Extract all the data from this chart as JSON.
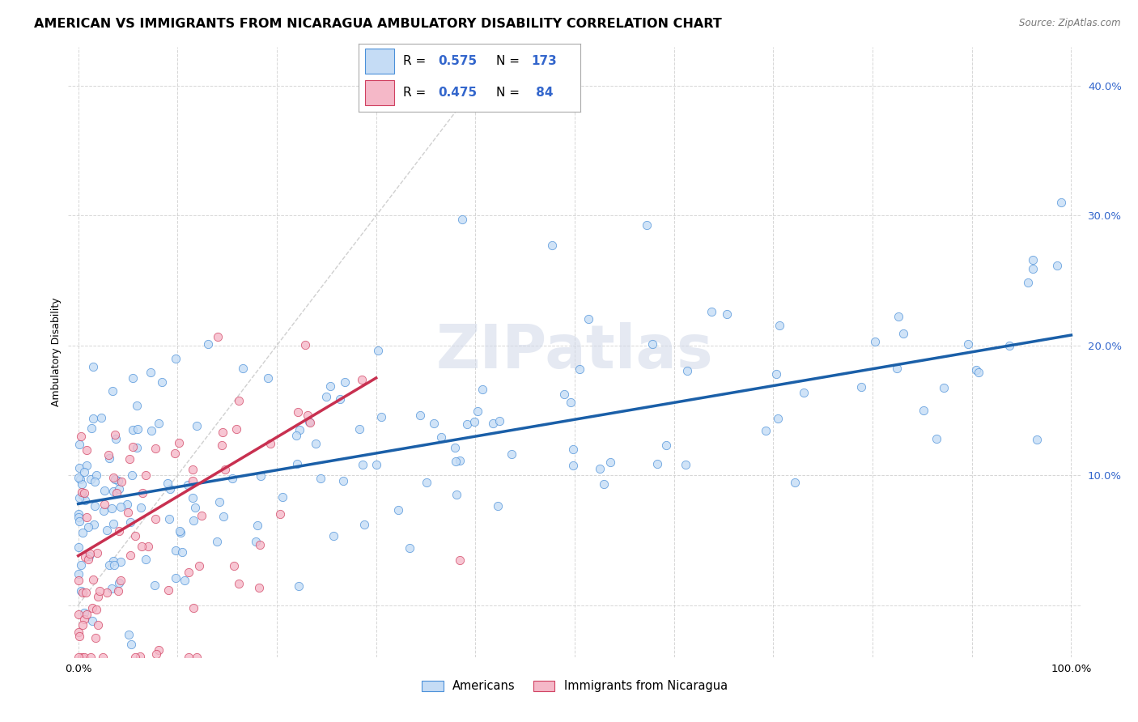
{
  "title": "AMERICAN VS IMMIGRANTS FROM NICARAGUA AMBULATORY DISABILITY CORRELATION CHART",
  "source": "Source: ZipAtlas.com",
  "ylabel": "Ambulatory Disability",
  "xlabel": "",
  "watermark": "ZIPatlas",
  "xlim": [
    -0.01,
    1.01
  ],
  "ylim": [
    -0.04,
    0.43
  ],
  "xticks": [
    0.0,
    0.1,
    0.2,
    0.3,
    0.4,
    0.5,
    0.6,
    0.7,
    0.8,
    0.9,
    1.0
  ],
  "yticks": [
    0.0,
    0.1,
    0.2,
    0.3,
    0.4
  ],
  "xticklabels": [
    "0.0%",
    "",
    "",
    "",
    "",
    "",
    "",
    "",
    "",
    "",
    "100.0%"
  ],
  "yticklabels": [
    "",
    "10.0%",
    "20.0%",
    "30.0%",
    "40.0%"
  ],
  "americans_R": 0.575,
  "americans_N": 173,
  "nicaragua_R": 0.475,
  "nicaragua_N": 84,
  "blue_fill": "#C5DCF5",
  "blue_edge": "#4A90D9",
  "pink_fill": "#F5B8C8",
  "pink_edge": "#D04060",
  "blue_line_color": "#1A5FA8",
  "pink_line_color": "#C83050",
  "diagonal_color": "#B0B0B0",
  "legend_text_color": "#3366CC",
  "title_fontsize": 11.5,
  "axis_label_fontsize": 9,
  "tick_fontsize": 9.5,
  "background_color": "#FFFFFF",
  "grid_color": "#CCCCCC",
  "blue_trendline": [
    0.0,
    0.078,
    1.0,
    0.208
  ],
  "pink_trendline": [
    0.0,
    0.038,
    0.3,
    0.175
  ]
}
